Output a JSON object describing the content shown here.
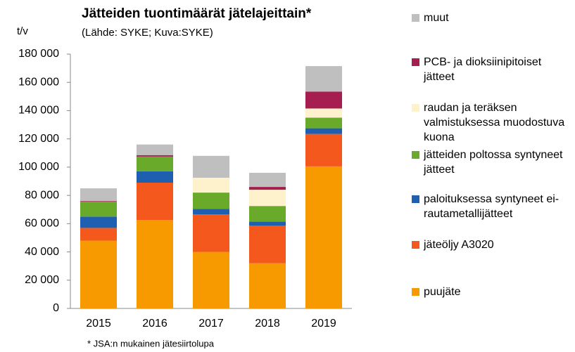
{
  "chart_data": {
    "type": "bar",
    "stacked": true,
    "title": "Jätteiden tuontimäärät jätelajeittain*",
    "subtitle": "(Lähde: SYKE; Kuva:SYKE)",
    "y_label": "t/v",
    "footnote": "* JSA:n mukainen jätesiirtolupa",
    "categories": [
      "2015",
      "2016",
      "2017",
      "2018",
      "2019"
    ],
    "series": [
      {
        "name": "puujäte",
        "color": "#f79a00",
        "values": [
          48000,
          62500,
          40000,
          32000,
          100500
        ]
      },
      {
        "name": "jäteöljy A3020",
        "color": "#f4581c",
        "values": [
          9000,
          26500,
          26500,
          26500,
          23000
        ]
      },
      {
        "name": "paloituksessa syntyneet ei-rautametallijätteet",
        "color": "#1f5fb0",
        "values": [
          8000,
          8000,
          4000,
          3000,
          4000
        ]
      },
      {
        "name": "jätteiden poltossa syntyneet jätteet",
        "color": "#6aaa2a",
        "values": [
          10500,
          10500,
          11500,
          11000,
          7500
        ]
      },
      {
        "name": "raudan ja teräksen valmistuksessa muodostuva kuona",
        "color": "#fdf2cc",
        "values": [
          0,
          0,
          10500,
          11500,
          6500
        ]
      },
      {
        "name": "PCB- ja dioksiinipitoiset jätteet",
        "color": "#a51e4f",
        "values": [
          500,
          1000,
          0,
          2000,
          12000
        ]
      },
      {
        "name": "muut",
        "color": "#bfbfbf",
        "values": [
          9000,
          7500,
          15500,
          10000,
          18000
        ]
      }
    ],
    "ylim": [
      0,
      180000
    ],
    "yticks": [
      0,
      {
        "value": 20000,
        "label": "20 000"
      },
      {
        "value": 40000,
        "label": "40 000"
      },
      {
        "value": 60000,
        "label": "60 000"
      },
      {
        "value": 80000,
        "label": "80 000"
      },
      {
        "value": 100000,
        "label": "100 000"
      },
      {
        "value": 120000,
        "label": "120 000"
      },
      {
        "value": 140000,
        "label": "140 000"
      },
      {
        "value": 160000,
        "label": "160 000"
      },
      {
        "value": 180000,
        "label": "180 000"
      }
    ],
    "legend": "right"
  }
}
